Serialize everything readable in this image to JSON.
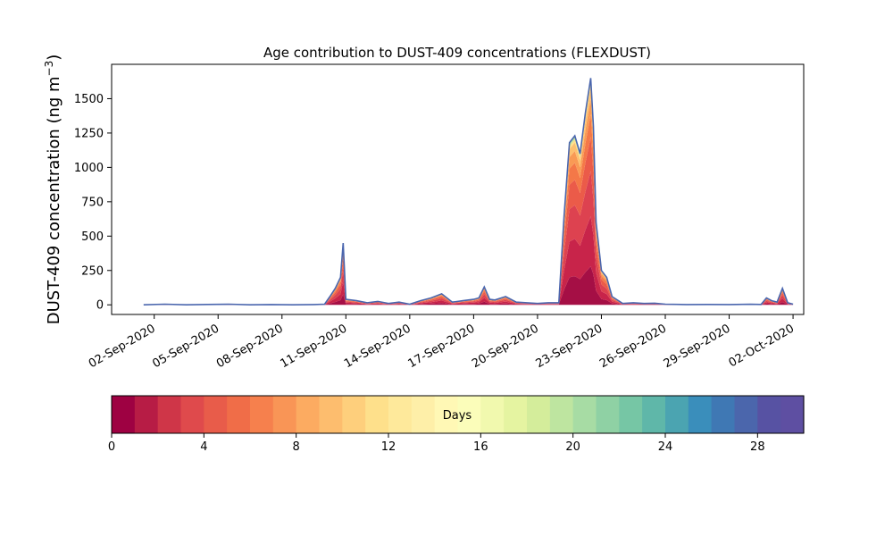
{
  "chart_data": {
    "type": "area",
    "title": "Age contribution to DUST-409 concentrations (FLEXDUST)",
    "xlabel": "",
    "ylabel": "DUST-409 concentration (ng m",
    "ylabel_superscript": "−3",
    "ylabel_close": ")",
    "x_is_date": true,
    "xlim": [
      "2020-08-31",
      "2020-10-02T12:00"
    ],
    "ylim": [
      -70,
      1750
    ],
    "yticks": [
      0,
      250,
      500,
      750,
      1000,
      1250,
      1500
    ],
    "xticks": [
      {
        "date": "2020-09-02",
        "label": "02-Sep-2020"
      },
      {
        "date": "2020-09-05",
        "label": "05-Sep-2020"
      },
      {
        "date": "2020-09-08",
        "label": "08-Sep-2020"
      },
      {
        "date": "2020-09-11",
        "label": "11-Sep-2020"
      },
      {
        "date": "2020-09-14",
        "label": "14-Sep-2020"
      },
      {
        "date": "2020-09-17",
        "label": "17-Sep-2020"
      },
      {
        "date": "2020-09-20",
        "label": "20-Sep-2020"
      },
      {
        "date": "2020-09-23",
        "label": "23-Sep-2020"
      },
      {
        "date": "2020-09-26",
        "label": "26-Sep-2020"
      },
      {
        "date": "2020-09-29",
        "label": "29-Sep-2020"
      },
      {
        "date": "2020-10-02",
        "label": "02-Oct-2020"
      }
    ],
    "series_total": {
      "x": [
        "2020-09-01T12:00",
        "2020-09-02T12:00",
        "2020-09-03T12:00",
        "2020-09-04T12:00",
        "2020-09-05T12:00",
        "2020-09-06T12:00",
        "2020-09-07T12:00",
        "2020-09-08T12:00",
        "2020-09-09T12:00",
        "2020-09-10T00:00",
        "2020-09-10T06:00",
        "2020-09-10T12:00",
        "2020-09-10T15:00",
        "2020-09-10T18:00",
        "2020-09-10T21:00",
        "2020-09-11T00:00",
        "2020-09-11T12:00",
        "2020-09-12T00:00",
        "2020-09-12T12:00",
        "2020-09-13T00:00",
        "2020-09-13T12:00",
        "2020-09-14T00:00",
        "2020-09-14T12:00",
        "2020-09-15T00:00",
        "2020-09-15T12:00",
        "2020-09-16T00:00",
        "2020-09-16T12:00",
        "2020-09-17T00:00",
        "2020-09-17T06:00",
        "2020-09-17T12:00",
        "2020-09-17T18:00",
        "2020-09-18T00:00",
        "2020-09-18T12:00",
        "2020-09-19T00:00",
        "2020-09-19T12:00",
        "2020-09-20T00:00",
        "2020-09-20T12:00",
        "2020-09-21T00:00",
        "2020-09-21T06:00",
        "2020-09-21T12:00",
        "2020-09-21T18:00",
        "2020-09-22T00:00",
        "2020-09-22T06:00",
        "2020-09-22T12:00",
        "2020-09-22T15:00",
        "2020-09-22T18:00",
        "2020-09-23T00:00",
        "2020-09-23T06:00",
        "2020-09-23T12:00",
        "2020-09-24T00:00",
        "2020-09-24T12:00",
        "2020-09-25T00:00",
        "2020-09-25T12:00",
        "2020-09-26T00:00",
        "2020-09-27T00:00",
        "2020-09-28T00:00",
        "2020-09-29T00:00",
        "2020-09-30T00:00",
        "2020-09-30T12:00",
        "2020-09-30T18:00",
        "2020-10-01T00:00",
        "2020-10-01T06:00",
        "2020-10-01T12:00",
        "2020-10-01T18:00",
        "2020-10-02T00:00"
      ],
      "y": [
        0,
        5,
        0,
        3,
        5,
        0,
        2,
        0,
        2,
        5,
        60,
        120,
        160,
        200,
        450,
        40,
        30,
        15,
        25,
        10,
        20,
        5,
        30,
        50,
        80,
        20,
        30,
        40,
        50,
        130,
        40,
        35,
        60,
        20,
        15,
        10,
        15,
        15,
        650,
        1180,
        1230,
        1100,
        1400,
        1650,
        1300,
        600,
        250,
        200,
        60,
        10,
        15,
        10,
        12,
        5,
        2,
        3,
        2,
        4,
        3,
        50,
        30,
        20,
        120,
        15,
        5
      ]
    },
    "bands": [
      {
        "age_days": [
          0,
          2
        ],
        "fraction": 0.17
      },
      {
        "age_days": [
          2,
          4
        ],
        "fraction": 0.22
      },
      {
        "age_days": [
          4,
          6
        ],
        "fraction": 0.2
      },
      {
        "age_days": [
          6,
          8
        ],
        "fraction": 0.15
      },
      {
        "age_days": [
          8,
          10
        ],
        "fraction": 0.1
      },
      {
        "age_days": [
          10,
          12
        ],
        "fraction": 0.07
      },
      {
        "age_days": [
          12,
          16
        ],
        "fraction": 0.05
      },
      {
        "age_days": [
          16,
          22
        ],
        "fraction": 0.02
      },
      {
        "age_days": [
          22,
          30
        ],
        "fraction": 0.02
      }
    ],
    "colorbar": {
      "label": "Days",
      "range": [
        0,
        30
      ],
      "ticks": [
        0,
        4,
        8,
        12,
        16,
        20,
        24,
        28
      ],
      "colors": [
        "#9e0142",
        "#b71c45",
        "#cf3648",
        "#df4a4c",
        "#e85c4a",
        "#f06d48",
        "#f6804d",
        "#f99556",
        "#fcab61",
        "#fdbd6e",
        "#fecf7c",
        "#fee08b",
        "#fee99b",
        "#feefa8",
        "#fff8b5",
        "#fbfdba",
        "#f1f9ae",
        "#e5f4a1",
        "#d4ed9b",
        "#bee5a0",
        "#a7dca4",
        "#8fd1a4",
        "#76c6a5",
        "#5fb7a9",
        "#4ba4b1",
        "#3a8ebb",
        "#3f78b4",
        "#4b66ac",
        "#5752a3",
        "#5e4fa2"
      ],
      "outline_color": "#3f5fae"
    }
  }
}
